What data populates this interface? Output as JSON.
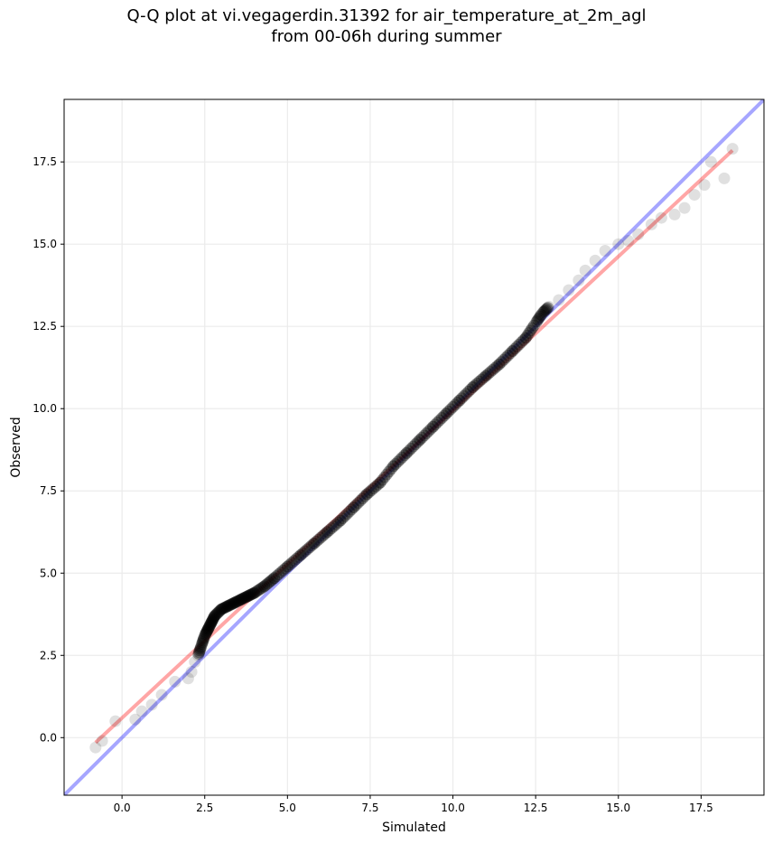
{
  "chart_data": {
    "type": "scatter",
    "title_line1": "Q-Q plot at vi.vegagerdin.31392 for air_temperature_at_2m_agl",
    "title_line2": "from 00-06h during summer",
    "xlabel": "Simulated",
    "ylabel": "Observed",
    "xlim": [
      -1.75,
      19.4
    ],
    "ylim": [
      -1.75,
      19.4
    ],
    "xticks": [
      0.0,
      2.5,
      5.0,
      7.5,
      10.0,
      12.5,
      15.0,
      17.5
    ],
    "xtick_labels": [
      "0.0",
      "2.5",
      "5.0",
      "7.5",
      "10.0",
      "12.5",
      "15.0",
      "17.5"
    ],
    "yticks": [
      0.0,
      2.5,
      5.0,
      7.5,
      10.0,
      12.5,
      15.0,
      17.5
    ],
    "ytick_labels": [
      "0.0",
      "2.5",
      "5.0",
      "7.5",
      "10.0",
      "12.5",
      "15.0",
      "17.5"
    ],
    "grid": true,
    "identity_line": {
      "color": "#0000ff",
      "x": [
        -1.75,
        19.4
      ],
      "y": [
        -1.75,
        19.4
      ]
    },
    "fit_line": {
      "color": "#ff0000",
      "x": [
        -0.8,
        18.45
      ],
      "y": [
        -0.15,
        17.85
      ]
    },
    "point_color": "#000000",
    "points": {
      "x": [
        -0.8,
        -0.6,
        -0.2,
        0.4,
        0.6,
        0.9,
        1.2,
        1.6,
        2.0,
        2.1,
        2.2,
        2.3,
        2.4,
        2.5,
        2.6,
        2.7,
        2.8,
        3.0,
        3.2,
        3.4,
        3.6,
        3.8,
        4.0,
        4.3,
        4.6,
        5.0,
        5.4,
        5.8,
        6.2,
        6.6,
        7.0,
        7.4,
        7.8,
        8.2,
        8.6,
        9.0,
        9.4,
        9.8,
        10.2,
        10.6,
        11.0,
        11.4,
        11.8,
        12.2,
        12.5,
        12.7,
        12.9,
        13.2,
        13.5,
        13.8,
        14.0,
        14.3,
        14.6,
        15.0,
        15.3,
        15.6,
        16.0,
        16.3,
        16.7,
        17.0,
        17.3,
        17.6,
        17.8,
        18.2,
        18.45
      ],
      "y": [
        -0.3,
        -0.1,
        0.5,
        0.55,
        0.8,
        1.0,
        1.3,
        1.7,
        1.8,
        2.0,
        2.3,
        2.5,
        2.8,
        3.1,
        3.3,
        3.5,
        3.7,
        3.9,
        4.0,
        4.1,
        4.2,
        4.3,
        4.4,
        4.6,
        4.85,
        5.2,
        5.55,
        5.9,
        6.25,
        6.6,
        7.0,
        7.4,
        7.75,
        8.25,
        8.65,
        9.05,
        9.45,
        9.85,
        10.25,
        10.65,
        11.0,
        11.35,
        11.75,
        12.15,
        12.6,
        12.9,
        13.1,
        13.3,
        13.6,
        13.9,
        14.2,
        14.5,
        14.8,
        15.0,
        15.1,
        15.3,
        15.6,
        15.8,
        15.9,
        16.1,
        16.5,
        16.8,
        17.5,
        17.0,
        17.9
      ]
    }
  }
}
